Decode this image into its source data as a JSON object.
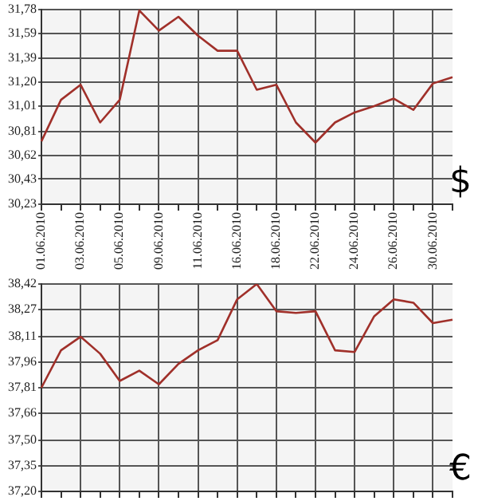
{
  "chart_data": [
    {
      "type": "line",
      "categories": [
        "01.06.2010",
        null,
        "03.06.2010",
        null,
        "05.06.2010",
        null,
        "09.06.2010",
        null,
        "11.06.2010",
        null,
        "16.06.2010",
        null,
        "18.06.2010",
        null,
        "22.06.2010",
        null,
        "24.06.2010",
        null,
        "26.06.2010",
        null,
        "30.06.2010",
        null
      ],
      "series": [
        {
          "color": "#a0302a",
          "values": [
            30.73,
            31.06,
            31.18,
            30.88,
            31.06,
            31.77,
            31.61,
            31.72,
            31.57,
            31.45,
            31.45,
            31.14,
            31.18,
            30.88,
            30.72,
            30.88,
            30.96,
            31.01,
            31.07,
            30.98,
            31.19,
            31.24
          ]
        }
      ],
      "ylim": [
        30.23,
        31.78
      ],
      "yticks": [
        {
          "value": 30.23,
          "label": "30,23"
        },
        {
          "value": 30.43,
          "label": "30,43"
        },
        {
          "value": 30.62,
          "label": "30,62"
        },
        {
          "value": 30.81,
          "label": "30,81"
        },
        {
          "value": 31.01,
          "label": "31,01"
        },
        {
          "value": 31.2,
          "label": "31,20"
        },
        {
          "value": 31.39,
          "label": "31,39"
        },
        {
          "value": 31.59,
          "label": "31,59"
        },
        {
          "value": 31.78,
          "label": "31,78"
        }
      ],
      "grid": true,
      "legend": false,
      "marker": "none",
      "line_style": "solid",
      "annotations": [
        "$"
      ]
    },
    {
      "type": "line",
      "categories": [
        "01.06.2010",
        null,
        "03.06.2010",
        null,
        "05.06.2010",
        null,
        "09.06.2010",
        null,
        "11.06.2010",
        null,
        "16.06.2010",
        null,
        "18.06.2010",
        null,
        "22.06.2010",
        null,
        "24.06.2010",
        null,
        "26.06.2010",
        null,
        "30.06.2010",
        null
      ],
      "series": [
        {
          "color": "#a0302a",
          "values": [
            37.81,
            38.03,
            38.11,
            38.01,
            37.85,
            37.91,
            37.83,
            37.95,
            38.03,
            38.09,
            38.33,
            38.42,
            38.26,
            38.25,
            38.26,
            38.03,
            38.02,
            38.23,
            38.33,
            38.31,
            38.19,
            38.21
          ]
        }
      ],
      "ylim": [
        37.2,
        38.42
      ],
      "yticks": [
        {
          "value": 37.2,
          "label": "37,20"
        },
        {
          "value": 37.35,
          "label": "37,35"
        },
        {
          "value": 37.5,
          "label": "37,50"
        },
        {
          "value": 37.66,
          "label": "37,66"
        },
        {
          "value": 37.81,
          "label": "37,81"
        },
        {
          "value": 37.96,
          "label": "37,96"
        },
        {
          "value": 38.11,
          "label": "38,11"
        },
        {
          "value": 38.27,
          "label": "38,27"
        },
        {
          "value": 38.42,
          "label": "38,42"
        }
      ],
      "grid": true,
      "legend": false,
      "marker": "none",
      "line_style": "solid",
      "tick_labels": "y",
      "annotations": [
        "€"
      ]
    }
  ]
}
